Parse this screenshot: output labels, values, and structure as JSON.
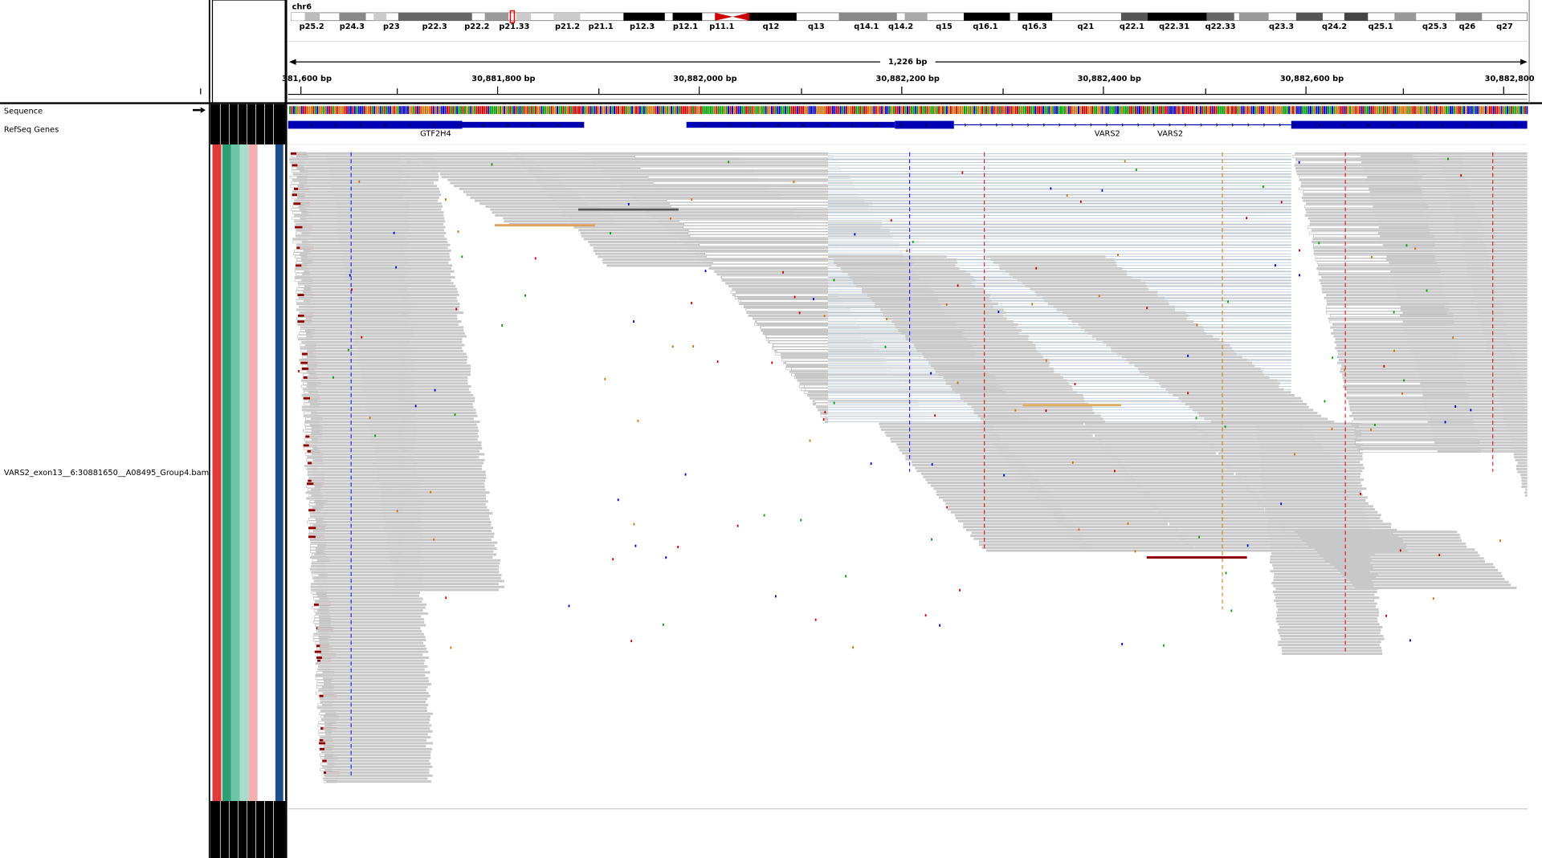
{
  "header": {
    "chromosome": "chr6",
    "cytobands": [
      "p25.2",
      "p24.3",
      "p23",
      "p22.3",
      "p22.2",
      "p21.33",
      "p21.2",
      "p21.1",
      "p12.3",
      "p12.1",
      "p11.1",
      "q12",
      "q13",
      "q14.1",
      "q14.2",
      "q15",
      "q16.1",
      "q16.3",
      "q21",
      "q22.1",
      "q22.31",
      "q22.33",
      "q23.3",
      "q24.2",
      "q25.1",
      "q25.3",
      "q26",
      "q27"
    ],
    "span": "1,226 bp",
    "ruler": [
      "381,600 bp",
      "30,881,800 bp",
      "30,882,000 bp",
      "30,882,200 bp",
      "30,882,400 bp",
      "30,882,600 bp",
      "30,882,800"
    ]
  },
  "tracks": {
    "sequence": "Sequence",
    "refseq": "RefSeq Genes",
    "genes": [
      "GTF2H4",
      "VARS2",
      "VARS2"
    ],
    "alignment": "VARS2_exon13__6:30881650__A08495_Group4.bam"
  }
}
